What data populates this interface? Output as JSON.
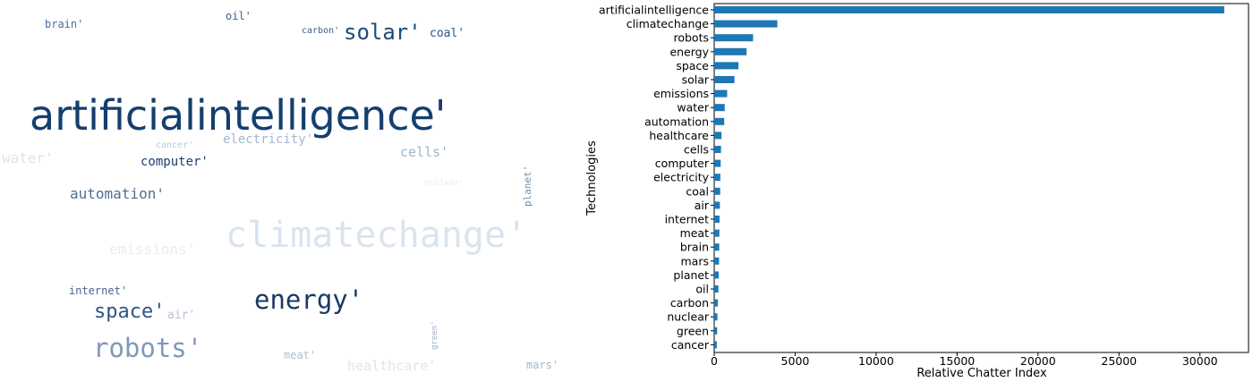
{
  "word_cloud": {
    "words": [
      {
        "text": "brain'",
        "color": "#4a6f98"
      },
      {
        "text": "oil'",
        "color": "#3d6189"
      },
      {
        "text": "carbon'",
        "color": "#3d6189"
      },
      {
        "text": "solar'",
        "color": "#1d4a7a"
      },
      {
        "text": "coal'",
        "color": "#2c5583"
      },
      {
        "text": "artificialintelligence'",
        "color": "#143f6e"
      },
      {
        "text": "cancer'",
        "color": "#b8c9dc"
      },
      {
        "text": "electricity'",
        "color": "#a4b8cf"
      },
      {
        "text": "water'",
        "color": "#dbe5f0"
      },
      {
        "text": "computer'",
        "color": "#1d3f6b"
      },
      {
        "text": "cells'",
        "color": "#9fb5cd"
      },
      {
        "text": "nuclear'",
        "color": "#e6ecf3"
      },
      {
        "text": "planet'",
        "color": "#6f8fb0"
      },
      {
        "text": "automation'",
        "color": "#4f6f92"
      },
      {
        "text": "climatechange'",
        "color": "#d9e4ef"
      },
      {
        "text": "emissions'",
        "color": "#e8edf3"
      },
      {
        "text": "internet'",
        "color": "#4a6689"
      },
      {
        "text": "energy'",
        "color": "#183a66"
      },
      {
        "text": "space'",
        "color": "#2f5584"
      },
      {
        "text": "air'",
        "color": "#b3c3d6"
      },
      {
        "text": "green'",
        "color": "#9fb2c9"
      },
      {
        "text": "robots'",
        "color": "#7f99b8"
      },
      {
        "text": "meat'",
        "color": "#b0c0d3"
      },
      {
        "text": "healthcare'",
        "color": "#dde6ef"
      },
      {
        "text": "mars'",
        "color": "#a6b7cb"
      }
    ]
  },
  "chart_data": {
    "type": "bar",
    "orientation": "horizontal",
    "categories": [
      "artificialintelligence",
      "climatechange",
      "robots",
      "energy",
      "space",
      "solar",
      "emissions",
      "water",
      "automation",
      "healthcare",
      "cells",
      "computer",
      "electricity",
      "coal",
      "air",
      "internet",
      "meat",
      "brain",
      "mars",
      "planet",
      "oil",
      "carbon",
      "nuclear",
      "green",
      "cancer"
    ],
    "values": [
      31500,
      3900,
      2400,
      2000,
      1500,
      1250,
      800,
      650,
      620,
      450,
      420,
      400,
      380,
      370,
      350,
      330,
      320,
      310,
      300,
      280,
      260,
      230,
      200,
      180,
      160
    ],
    "xlabel": "Relative Chatter Index",
    "ylabel": "Technologies",
    "xlim": [
      0,
      33000
    ],
    "xticks": [
      "0",
      "5000",
      "10000",
      "15000",
      "20000",
      "25000",
      "30000"
    ],
    "bar_color": "#1f77b4",
    "grid": false
  }
}
